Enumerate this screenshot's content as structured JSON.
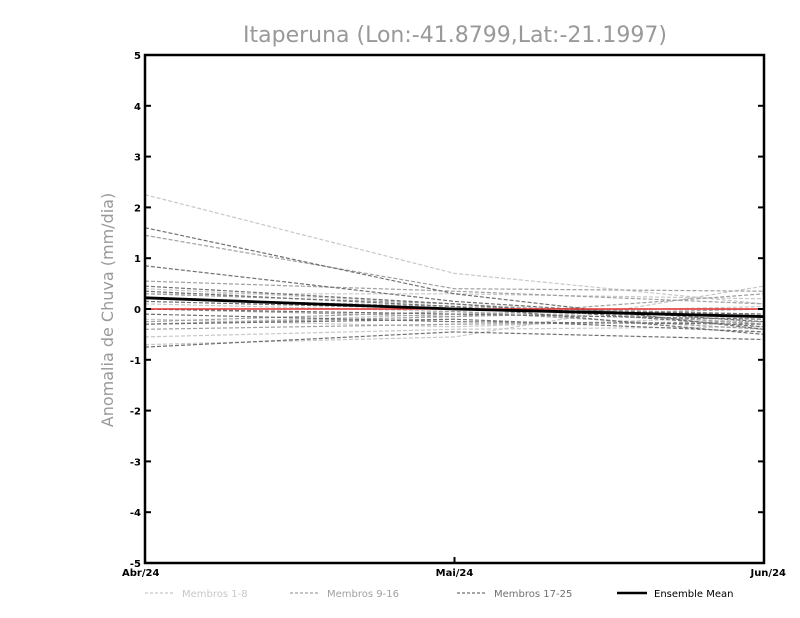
{
  "chart_data": {
    "type": "line",
    "title": "Itaperuna (Lon:-41.8799,Lat:-21.1997)",
    "ylabel": "Anomalia de Chuva (mm/dia)",
    "xlabel": "",
    "categories": [
      "Abr/24",
      "Mai/24",
      "Jun/24"
    ],
    "ylim": [
      -5,
      5
    ],
    "yticks": [
      -5,
      -4,
      -3,
      -2,
      -1,
      0,
      1,
      2,
      3,
      4,
      5
    ],
    "grid": false,
    "legend_position": "bottom",
    "zero_line": {
      "value": 0,
      "color": "#e03030"
    },
    "legend": [
      {
        "label": "Membros 1-8",
        "color": "#c8c8c8",
        "style": "dashed"
      },
      {
        "label": "Membros 9-16",
        "color": "#a0a0a0",
        "style": "dashed"
      },
      {
        "label": "Membros 17-25",
        "color": "#707070",
        "style": "dashed"
      },
      {
        "label": "Ensemble Mean",
        "color": "#000000",
        "style": "solid"
      }
    ],
    "groups": [
      {
        "name": "Membros 1-8",
        "color": "#c8c8c8",
        "series": [
          {
            "values": [
              2.25,
              0.7,
              0.1
            ]
          },
          {
            "values": [
              -0.7,
              -0.55,
              0.45
            ]
          },
          {
            "values": [
              0.3,
              0.3,
              0.2
            ]
          },
          {
            "values": [
              -0.3,
              -0.1,
              0.05
            ]
          },
          {
            "values": [
              0.4,
              0.1,
              -0.2
            ]
          },
          {
            "values": [
              -0.55,
              -0.4,
              -0.35
            ]
          },
          {
            "values": [
              0.1,
              -0.05,
              -0.25
            ]
          },
          {
            "values": [
              -0.2,
              -0.35,
              -0.15
            ]
          }
        ]
      },
      {
        "name": "Membros 9-16",
        "color": "#a0a0a0",
        "series": [
          {
            "values": [
              1.45,
              0.4,
              0.35
            ]
          },
          {
            "values": [
              0.55,
              0.35,
              0.1
            ]
          },
          {
            "values": [
              -0.3,
              -0.15,
              0.3
            ]
          },
          {
            "values": [
              0.2,
              0.05,
              -0.1
            ]
          },
          {
            "values": [
              -0.4,
              -0.3,
              -0.25
            ]
          },
          {
            "values": [
              0.0,
              -0.15,
              0.0
            ]
          },
          {
            "values": [
              -0.25,
              -0.05,
              -0.4
            ]
          },
          {
            "values": [
              0.3,
              0.1,
              -0.3
            ]
          }
        ]
      },
      {
        "name": "Membros 17-25",
        "color": "#707070",
        "series": [
          {
            "values": [
              1.6,
              0.3,
              -0.4
            ]
          },
          {
            "values": [
              0.85,
              0.15,
              -0.25
            ]
          },
          {
            "values": [
              -0.75,
              -0.45,
              -0.6
            ]
          },
          {
            "values": [
              0.45,
              0.1,
              -0.35
            ]
          },
          {
            "values": [
              -0.3,
              -0.2,
              -0.45
            ]
          },
          {
            "values": [
              0.15,
              0.0,
              -0.1
            ]
          },
          {
            "values": [
              0.0,
              -0.1,
              -0.2
            ]
          },
          {
            "values": [
              -0.1,
              -0.25,
              -0.3
            ]
          },
          {
            "values": [
              0.35,
              0.05,
              -0.5
            ]
          }
        ]
      }
    ],
    "ensemble_mean": {
      "name": "Ensemble Mean",
      "color": "#000000",
      "values": [
        0.22,
        0.0,
        -0.15
      ]
    }
  }
}
